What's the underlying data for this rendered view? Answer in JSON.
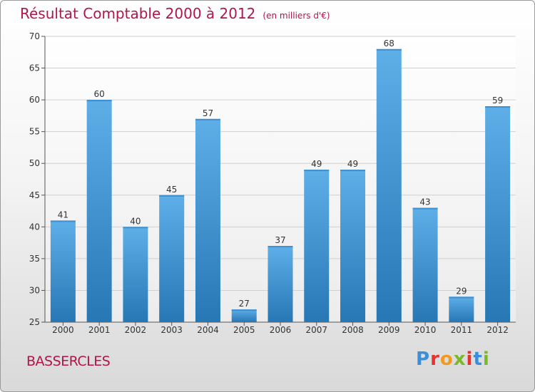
{
  "title": "Résultat Comptable 2000 à 2012",
  "unit": "(en milliers d'€)",
  "commune": "BASSERCLES",
  "logo": {
    "text": "Proxiti",
    "letters": [
      "P",
      "r",
      "o",
      "x",
      "i",
      "t",
      "i"
    ]
  },
  "colors": {
    "title": "#b0154c",
    "bar_light": "#5eaee8",
    "bar_dark": "#2777b5",
    "grid": "#d0d0d0"
  },
  "chart_data": {
    "type": "bar",
    "title": "Résultat Comptable 2000 à 2012",
    "ylabel": "en milliers d'€",
    "xlabel": "",
    "categories": [
      "2000",
      "2001",
      "2002",
      "2003",
      "2004",
      "2005",
      "2006",
      "2007",
      "2008",
      "2009",
      "2010",
      "2011",
      "2012"
    ],
    "values": [
      41,
      60,
      40,
      45,
      57,
      27,
      37,
      49,
      49,
      68,
      43,
      29,
      59
    ],
    "ylim": [
      25,
      70
    ],
    "yticks": [
      25,
      30,
      35,
      40,
      45,
      50,
      55,
      60,
      65,
      70
    ],
    "grid": true
  }
}
